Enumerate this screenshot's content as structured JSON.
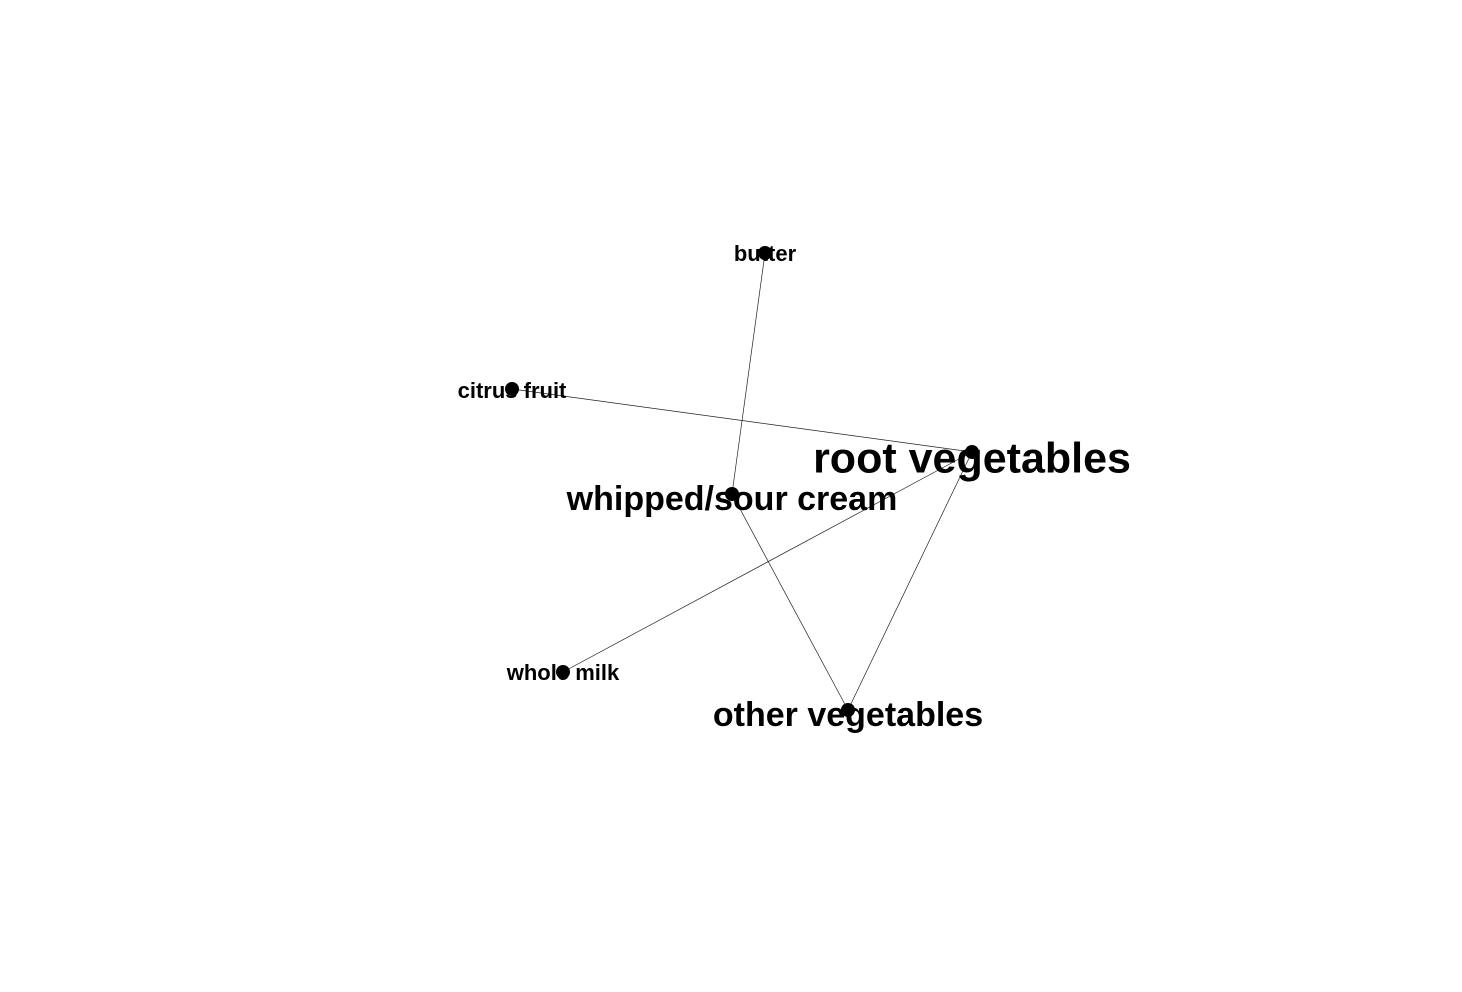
{
  "graph": {
    "edge_color": "#222222",
    "node_color": "#000000",
    "nodes": [
      {
        "id": "butter",
        "label": "butter",
        "size": "small"
      },
      {
        "id": "citrus_fruit",
        "label": "citrus fruit",
        "size": "small"
      },
      {
        "id": "root_vegetables",
        "label": "root vegetables",
        "size": "large"
      },
      {
        "id": "whipped_sour_cream",
        "label": "whipped/sour cream",
        "size": "medium"
      },
      {
        "id": "whole_milk",
        "label": "whole milk",
        "size": "small"
      },
      {
        "id": "other_vegetables",
        "label": "other vegetables",
        "size": "medium"
      }
    ],
    "edges": [
      {
        "source": "butter",
        "target": "whipped_sour_cream"
      },
      {
        "source": "citrus_fruit",
        "target": "root_vegetables"
      },
      {
        "source": "whipped_sour_cream",
        "target": "other_vegetables"
      },
      {
        "source": "root_vegetables",
        "target": "whole_milk"
      },
      {
        "source": "root_vegetables",
        "target": "other_vegetables"
      }
    ]
  }
}
